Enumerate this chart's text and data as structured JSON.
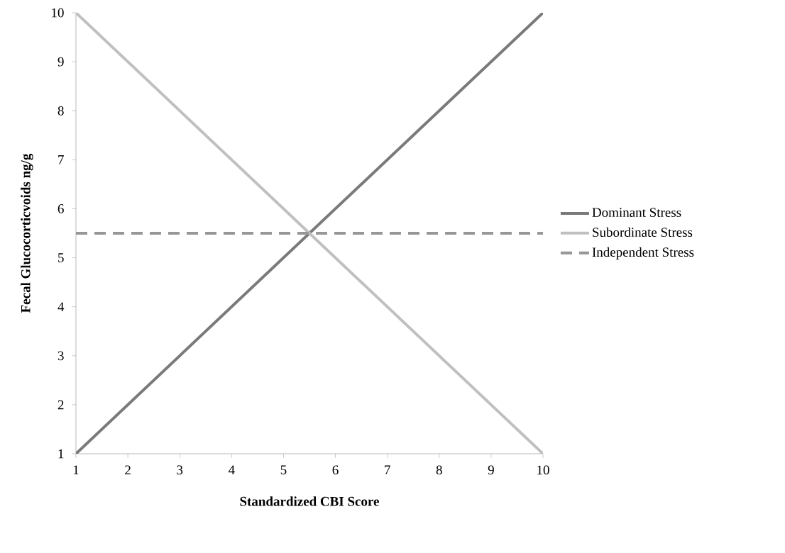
{
  "chart_data": {
    "type": "line",
    "xlabel": "Standardized CBI Score",
    "ylabel": "Fecal Glucocorticvoids  ng/g",
    "x": [
      1,
      10
    ],
    "xlim": [
      1,
      10
    ],
    "ylim": [
      1,
      10
    ],
    "xticks": [
      1,
      2,
      3,
      4,
      5,
      6,
      7,
      8,
      9,
      10
    ],
    "yticks": [
      1,
      2,
      3,
      4,
      5,
      6,
      7,
      8,
      9,
      10
    ],
    "legend": "right",
    "series": [
      {
        "name": "Dominant Stress",
        "color": "#7a7a7a",
        "values": [
          1,
          10
        ],
        "line_style": "solid"
      },
      {
        "name": "Subordinate Stress",
        "color": "#c0c0c0",
        "values": [
          10,
          1
        ],
        "line_style": "solid"
      },
      {
        "name": "Independent Stress",
        "color": "#979797",
        "values": [
          5.5,
          5.5
        ],
        "line_style": "dashed"
      }
    ]
  }
}
